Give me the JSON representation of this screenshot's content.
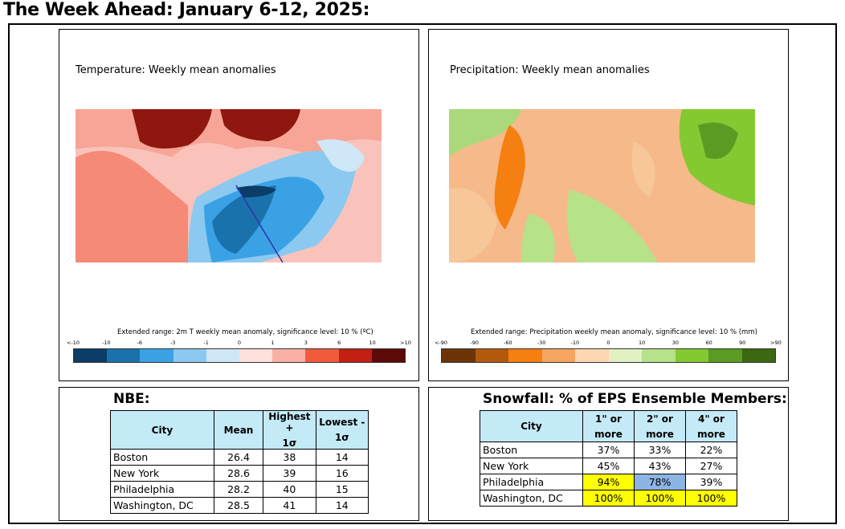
{
  "title": "The Week Ahead: January 6-12, 2025:",
  "temperature": {
    "title": "Temperature: Weekly mean anomalies",
    "caption": "Extended range: 2m T weekly mean anomaly, significance level: 10 % (ºC)",
    "ticks": [
      "<-10",
      "-10",
      "-6",
      "-3",
      "-1",
      "0",
      "1",
      "3",
      "6",
      "10",
      ">10"
    ],
    "colors": [
      "#0b3d66",
      "#1a72ad",
      "#3aa2e4",
      "#8cc9f0",
      "#cfe7f7",
      "#fde0dc",
      "#fbb0a6",
      "#f25a3c",
      "#c31f12",
      "#5c0a08"
    ]
  },
  "precipitation": {
    "title": "Precipitation: Weekly mean anomalies",
    "caption": "Extended range: Precipitation weekly mean anomaly, significance level: 10 % (mm)",
    "ticks": [
      "<-90",
      "-90",
      "-60",
      "-30",
      "-10",
      "0",
      "10",
      "30",
      "60",
      "90",
      ">90"
    ],
    "colors": [
      "#6b3508",
      "#b3590e",
      "#f57f10",
      "#f6a560",
      "#fcd7b1",
      "#e2f1c4",
      "#b6e28a",
      "#84c932",
      "#5c9b23",
      "#3b6811"
    ]
  },
  "nbe": {
    "title": "NBE:",
    "headers": {
      "city": "City",
      "mean": "Mean",
      "high_1": "Highest +",
      "high_2": "1σ",
      "low_1": "Lowest -",
      "low_2": "1σ"
    },
    "rows": [
      {
        "city": "Boston",
        "mean": "26.4",
        "high": "38",
        "low": "14"
      },
      {
        "city": "New York",
        "mean": "28.6",
        "high": "39",
        "low": "16"
      },
      {
        "city": "Philadelphia",
        "mean": "28.2",
        "high": "40",
        "low": "15"
      },
      {
        "city": "Washington, DC",
        "mean": "28.5",
        "high": "41",
        "low": "14"
      }
    ]
  },
  "snowfall": {
    "title": "Snowfall: % of EPS Ensemble Members:",
    "headers": {
      "city": "City",
      "c1_1": "1\" or",
      "c1_2": "more",
      "c2_1": "2\" or",
      "c2_2": "more",
      "c3_1": "4\" or",
      "c3_2": "more"
    },
    "rows": [
      {
        "city": "Boston",
        "c1": "37%",
        "c2": "33%",
        "c3": "22%",
        "bg": [
          "",
          "",
          ""
        ]
      },
      {
        "city": "New York",
        "c1": "45%",
        "c2": "43%",
        "c3": "27%",
        "bg": [
          "",
          "",
          ""
        ]
      },
      {
        "city": "Philadelphia",
        "c1": "94%",
        "c2": "78%",
        "c3": "39%",
        "bg": [
          "#ffff00",
          "#8db4e2",
          ""
        ]
      },
      {
        "city": "Washington, DC",
        "c1": "100%",
        "c2": "100%",
        "c3": "100%",
        "bg": [
          "#ffff00",
          "#ffff00",
          "#ffff00"
        ]
      }
    ]
  }
}
